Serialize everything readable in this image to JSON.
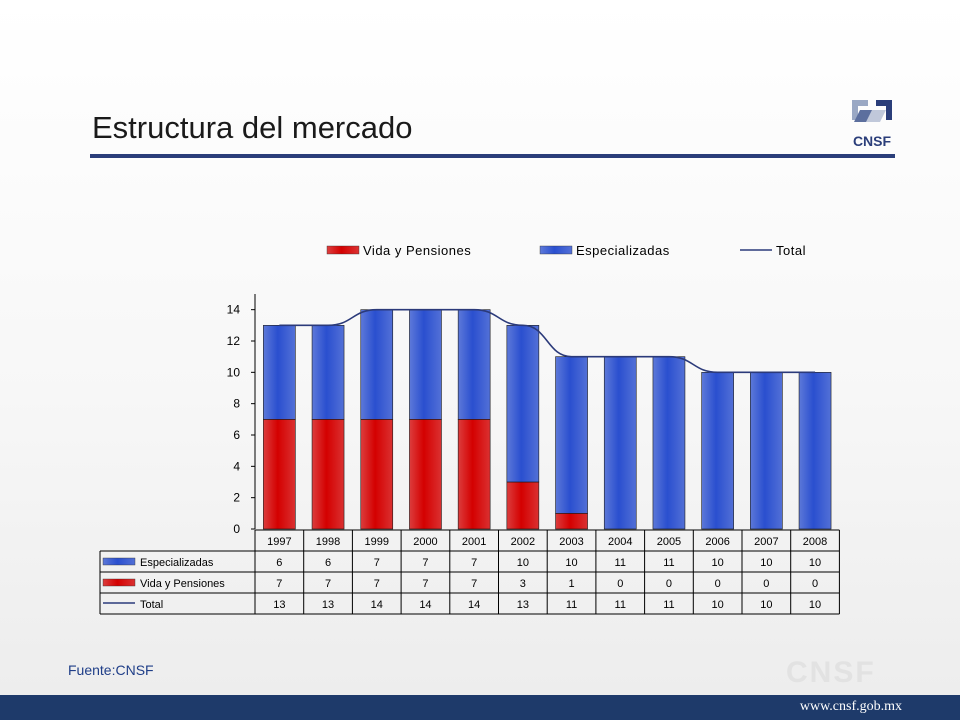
{
  "slide": {
    "title": "Estructura del mercado",
    "logo_text": "CNSF",
    "source": "Fuente:CNSF",
    "watermark": "CNSF",
    "url": "www.cnsf.gob.mx",
    "colors": {
      "title_rule": "#2b3e7a",
      "footer": "#1e3a6a",
      "source_text": "#1f3e88"
    }
  },
  "chart_data": {
    "type": "bar",
    "stacked": true,
    "categories": [
      "1997",
      "1998",
      "1999",
      "2000",
      "2001",
      "2002",
      "2003",
      "2004",
      "2005",
      "2006",
      "2007",
      "2008"
    ],
    "series": [
      {
        "name": "Vida y Pensiones",
        "table_label": "Vida y Pensiones",
        "kind": "bar",
        "color": "#d40000",
        "values": [
          7,
          7,
          7,
          7,
          7,
          3,
          1,
          0,
          0,
          0,
          0,
          0
        ]
      },
      {
        "name": "Especializadas",
        "table_label": "Especializadas",
        "kind": "bar",
        "color": "#2a4fcf",
        "values": [
          6,
          6,
          7,
          7,
          7,
          10,
          10,
          11,
          11,
          10,
          10,
          10
        ]
      },
      {
        "name": "Total",
        "table_label": "Total",
        "kind": "line",
        "color": "#2b3a7a",
        "values": [
          13,
          13,
          14,
          14,
          14,
          13,
          11,
          11,
          11,
          10,
          10,
          10
        ]
      }
    ],
    "legend_order": [
      "Vida y Pensiones",
      "Especializadas",
      "Total"
    ],
    "table_order": [
      "Especializadas",
      "Vida y Pensiones",
      "Total"
    ],
    "ylim": [
      0,
      15
    ],
    "yticks": [
      0,
      2,
      4,
      6,
      8,
      10,
      12,
      14
    ],
    "legend_position": "top",
    "data_table": true,
    "grid": false
  }
}
